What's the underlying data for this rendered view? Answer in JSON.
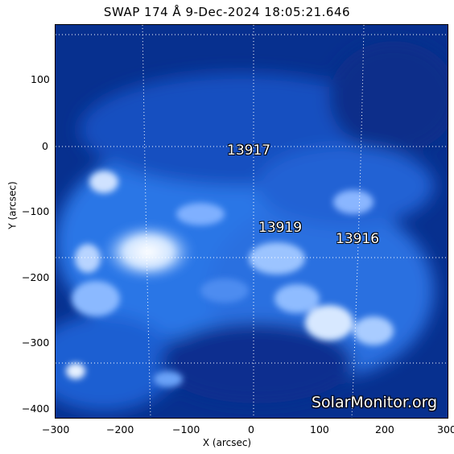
{
  "title": "SWAP 174 Å  9-Dec-2024 18:05:21.646",
  "axes": {
    "xlabel": "X (arcsec)",
    "ylabel": "Y (arcsec)",
    "xticks": [
      "−300",
      "−200",
      "−100",
      "0",
      "100",
      "200",
      "300"
    ],
    "yticks": [
      "100",
      "0",
      "−100",
      "−200",
      "−300",
      "−400"
    ]
  },
  "regions": [
    {
      "label": "13917"
    },
    {
      "label": "13919"
    },
    {
      "label": "13916"
    }
  ],
  "watermark": "SolarMonitor.org",
  "colors": {
    "background": "#001a66",
    "bright": "#ffffff",
    "mid": "#1f6fe0",
    "grid": "#ffffff"
  }
}
